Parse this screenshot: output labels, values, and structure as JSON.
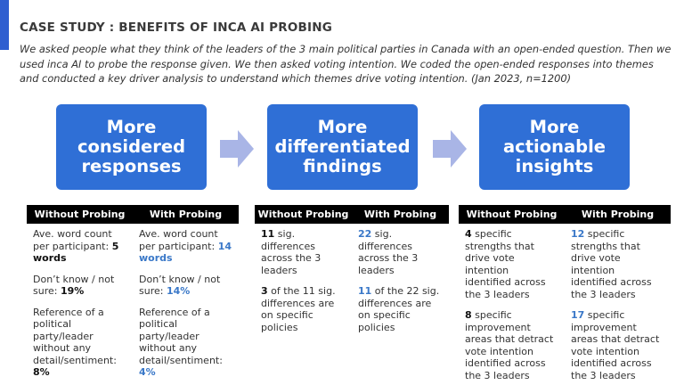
{
  "header": {
    "title": "CASE STUDY : BENEFITS OF INCA AI PROBING",
    "intro": "We asked people what they think of the leaders of the 3 main political parties in Canada with an open-ended question. Then we used inca AI to probe the response given. We then asked voting intention. We coded the open-ended responses into themes and conducted a key driver analysis to understand which themes drive voting intention. (Jan 2023, n=1200)"
  },
  "panels": [
    {
      "title": "More considered responses",
      "columns": [
        "Without Probing",
        "With Probing"
      ],
      "rows": [
        [
          [
            {
              "text": "Ave. word count per participant: "
            },
            {
              "text": "5 words",
              "emphasis": true
            }
          ],
          [
            {
              "text": "Ave. word count per participant: "
            },
            {
              "text": "14 words",
              "emphasis": true
            }
          ]
        ],
        [
          [
            {
              "text": "Don’t know / not sure: "
            },
            {
              "text": "19%",
              "emphasis": true
            }
          ],
          [
            {
              "text": "Don’t know / not sure: "
            },
            {
              "text": "14%",
              "emphasis": true
            }
          ]
        ],
        [
          [
            {
              "text": "Reference of a political party/leader without any detail/sentiment: "
            },
            {
              "text": "8%",
              "emphasis": true
            }
          ],
          [
            {
              "text": "Reference of a political party/leader without any detail/sentiment: "
            },
            {
              "text": "4%",
              "emphasis": true
            }
          ]
        ]
      ]
    },
    {
      "title": "More differentiated findings",
      "columns": [
        "Without Probing",
        "With Probing"
      ],
      "rows": [
        [
          [
            {
              "text": "11",
              "emphasis": true
            },
            {
              "text": " sig. differences across the 3 leaders"
            }
          ],
          [
            {
              "text": "22",
              "emphasis": true
            },
            {
              "text": " sig. differences across the 3 leaders"
            }
          ]
        ],
        [
          [
            {
              "text": "3",
              "emphasis": true
            },
            {
              "text": " of the 11 sig. differences are on specific policies"
            }
          ],
          [
            {
              "text": "11",
              "emphasis": true
            },
            {
              "text": " of the 22 sig. differences are on specific policies"
            }
          ]
        ]
      ]
    },
    {
      "title": "More actionable insights",
      "columns": [
        "Without Probing",
        "With Probing"
      ],
      "rows": [
        [
          [
            {
              "text": "4",
              "emphasis": true
            },
            {
              "text": " specific strengths that drive vote intention identified across the 3 leaders"
            }
          ],
          [
            {
              "text": "12",
              "emphasis": true
            },
            {
              "text": " specific strengths that drive vote intention identified across the 3 leaders"
            }
          ]
        ],
        [
          [
            {
              "text": "8",
              "emphasis": true
            },
            {
              "text": " specific improvement areas that detract vote intention identified across the 3 leaders"
            }
          ],
          [
            {
              "text": "17",
              "emphasis": true
            },
            {
              "text": " specific improvement areas that detract vote intention identified across the 3 leaders"
            }
          ]
        ]
      ]
    }
  ]
}
